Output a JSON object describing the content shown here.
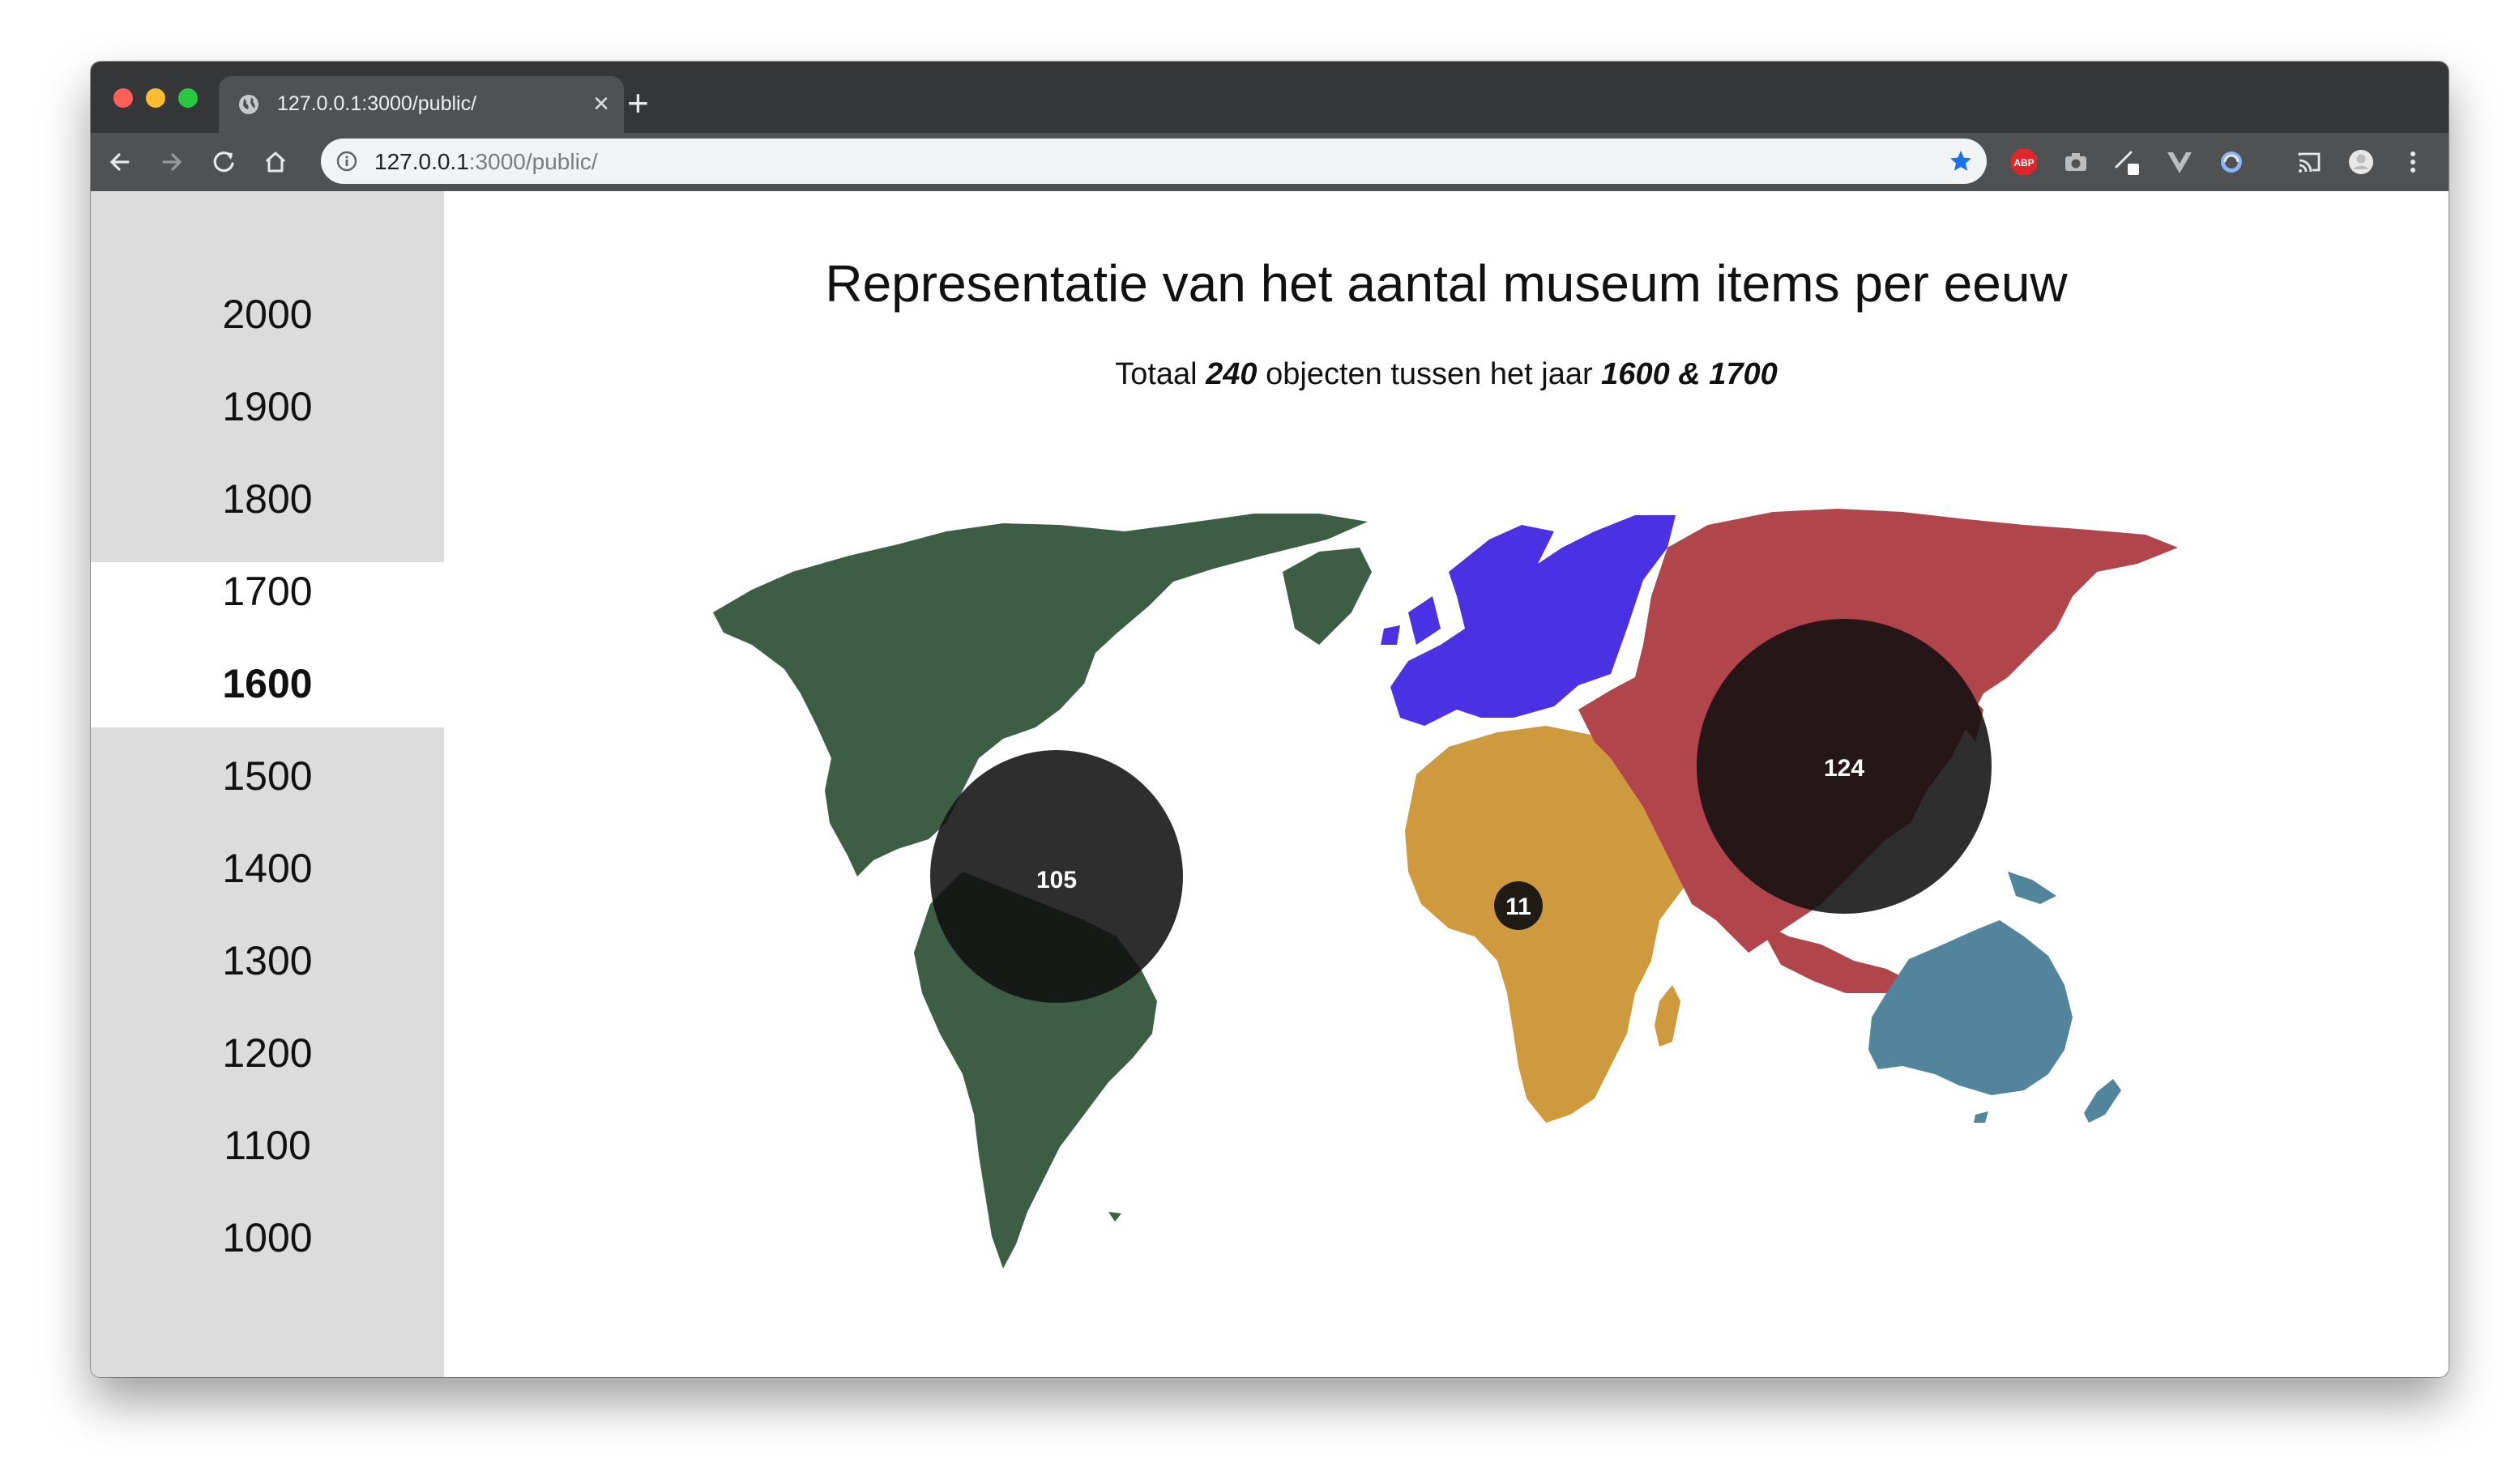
{
  "browser": {
    "tab_title": "127.0.0.1:3000/public/",
    "url_host": "127.0.0.1",
    "url_path": ":3000/public/",
    "extension_label_abp": "ABP"
  },
  "sidebar": {
    "centuries": [
      "2000",
      "1900",
      "1800",
      "1700",
      "1600",
      "1500",
      "1400",
      "1300",
      "1200",
      "1100",
      "1000"
    ],
    "selected": [
      "1700",
      "1600"
    ],
    "active": "1600"
  },
  "page": {
    "title": "Representatie van het aantal museum items per eeuw",
    "subtitle_prefix": "Totaal ",
    "total": "240",
    "subtitle_middle": " objecten tussen het jaar ",
    "year_range": "1600 & 1700"
  },
  "map": {
    "continents": [
      {
        "name": "Americas",
        "color": "#3d5e45"
      },
      {
        "name": "Europe",
        "color": "#4b31e3"
      },
      {
        "name": "Africa",
        "color": "#cf9a3d"
      },
      {
        "name": "Asia",
        "color": "#b0454b"
      },
      {
        "name": "Oceania",
        "color": "#52849c"
      }
    ],
    "bubbles": [
      {
        "region": "Americas",
        "count": "105"
      },
      {
        "region": "Africa",
        "count": "11"
      },
      {
        "region": "Asia",
        "count": "124"
      }
    ]
  },
  "colors": {
    "sidebar_bg": "#dcdcdc",
    "selected_bg": "#ffffff",
    "bubble": "#111111",
    "titlebar": "#353637",
    "toolbar": "#505152"
  },
  "icons": {
    "back": "arrow-left-icon",
    "forward": "arrow-right-icon",
    "reload": "reload-icon",
    "home": "home-icon",
    "info": "info-icon",
    "star": "star-icon",
    "menu": "kebab-menu-icon"
  }
}
